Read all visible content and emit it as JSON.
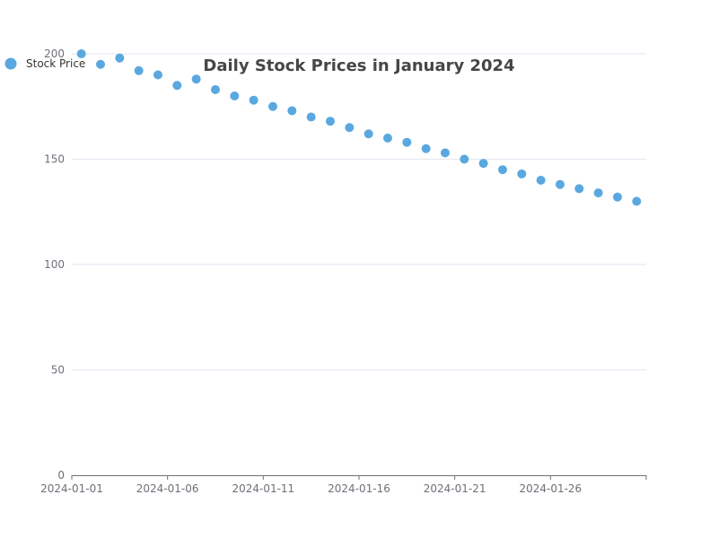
{
  "chart_data": {
    "type": "scatter",
    "title": "Daily Stock Prices in January 2024",
    "xlabel": "",
    "ylabel": "",
    "ylim": [
      0,
      200
    ],
    "yticks": [
      "0",
      "50",
      "100",
      "150",
      "200"
    ],
    "xticks": [
      "2024-01-01",
      "2024-01-06",
      "2024-01-11",
      "2024-01-16",
      "2024-01-21",
      "2024-01-26"
    ],
    "grid": true,
    "legend": "top-left",
    "series": [
      {
        "name": "Stock Price",
        "color": "#5aa8e0",
        "x": [
          "2024-01-01",
          "2024-01-02",
          "2024-01-03",
          "2024-01-04",
          "2024-01-05",
          "2024-01-06",
          "2024-01-07",
          "2024-01-08",
          "2024-01-09",
          "2024-01-10",
          "2024-01-11",
          "2024-01-12",
          "2024-01-13",
          "2024-01-14",
          "2024-01-15",
          "2024-01-16",
          "2024-01-17",
          "2024-01-18",
          "2024-01-19",
          "2024-01-20",
          "2024-01-21",
          "2024-01-22",
          "2024-01-23",
          "2024-01-24",
          "2024-01-25",
          "2024-01-26",
          "2024-01-27",
          "2024-01-28",
          "2024-01-29",
          "2024-01-30"
        ],
        "values": [
          200,
          195,
          198,
          192,
          190,
          185,
          188,
          183,
          180,
          178,
          175,
          173,
          170,
          168,
          165,
          162,
          160,
          158,
          155,
          153,
          150,
          148,
          145,
          143,
          140,
          138,
          136,
          134,
          132,
          130
        ]
      }
    ]
  }
}
